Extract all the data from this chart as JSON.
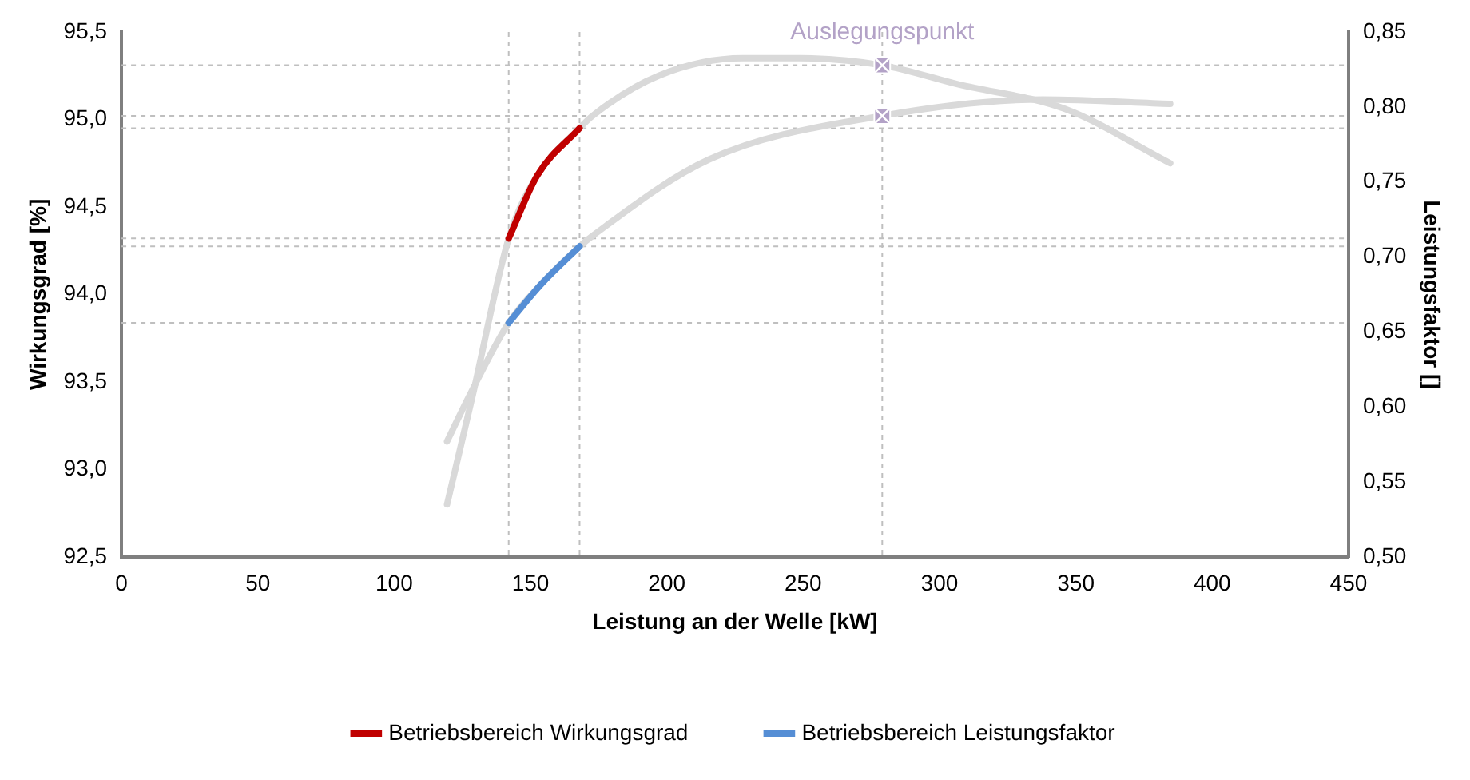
{
  "chart_data": {
    "type": "line",
    "xlabel": "Leistung an der Welle [kW]",
    "ylabel": "Wirkungsgrad [%]",
    "y2label": "Leistungsfaktor []",
    "xlim": [
      0,
      450
    ],
    "xticks": [
      0,
      50,
      100,
      150,
      200,
      250,
      300,
      350,
      400,
      450
    ],
    "ylim": [
      92.5,
      95.5
    ],
    "yticks": [
      {
        "value": 92.5,
        "label": "92,5"
      },
      {
        "value": 93,
        "label": "93,0"
      },
      {
        "value": 93.5,
        "label": "93,5"
      },
      {
        "value": 94,
        "label": "94,0"
      },
      {
        "value": 94.5,
        "label": "94,5"
      },
      {
        "value": 95,
        "label": "95,0"
      },
      {
        "value": 95.5,
        "label": "95,5"
      }
    ],
    "y2lim": [
      0.5,
      0.85
    ],
    "y2ticks": [
      {
        "value": 0.5,
        "label": "0,50"
      },
      {
        "value": 0.55,
        "label": "0,55"
      },
      {
        "value": 0.6,
        "label": "0,60"
      },
      {
        "value": 0.65,
        "label": "0,65"
      },
      {
        "value": 0.7,
        "label": "0,70"
      },
      {
        "value": 0.75,
        "label": "0,75"
      },
      {
        "value": 0.8,
        "label": "0,80"
      },
      {
        "value": 0.85,
        "label": "0,85"
      }
    ],
    "grid": false,
    "legend": "bottom",
    "marker": "none",
    "line_style": "solid",
    "series": [
      {
        "color": "#d9d9d9",
        "axis": "y",
        "x": [
          119.4,
          128.6,
          142,
          152.5,
          168,
          172.7,
          197,
          228,
          249,
          279,
          307,
          346,
          384.6
        ],
        "values": [
          92.8,
          93.41,
          94.32,
          94.68,
          94.95,
          95.02,
          95.25,
          95.35,
          95.35,
          95.31,
          95.2,
          95.06,
          94.75
        ]
      },
      {
        "color": "#d9d9d9",
        "axis": "y2",
        "x": [
          119.4,
          128,
          142,
          154,
          168,
          172.7,
          215.5,
          278.6,
          338,
          384.6
        ],
        "values": [
          0.577,
          0.609,
          0.656,
          0.682,
          0.707,
          0.714,
          0.765,
          0.794,
          0.805,
          0.802
        ]
      },
      {
        "name": "Betriebsbereich Wirkungsgrad",
        "color": "#c00000",
        "axis": "y",
        "x": [
          142,
          152.5,
          168
        ],
        "values": [
          94.32,
          94.68,
          94.95
        ]
      },
      {
        "name": "Betriebsbereich Leistungsfaktor",
        "color": "#558ed5",
        "axis": "y2",
        "x": [
          142,
          154,
          168
        ],
        "values": [
          0.656,
          0.682,
          0.707
        ]
      },
      {
        "type": "scatter",
        "marker": "square",
        "color": "#b3a2c7",
        "axis": "y",
        "x": [
          279
        ],
        "values": [
          95.31
        ]
      },
      {
        "type": "scatter",
        "marker": "square",
        "color": "#b3a2c7",
        "axis": "y2",
        "x": [
          279
        ],
        "values": [
          0.794
        ]
      }
    ],
    "ref_lines": [
      {
        "axis": "y",
        "value": 95.31,
        "color": "#bfbfbf",
        "line_style": "dashed"
      },
      {
        "axis": "y",
        "value": 94.95,
        "color": "#bfbfbf",
        "line_style": "dashed"
      },
      {
        "axis": "y",
        "value": 94.32,
        "color": "#bfbfbf",
        "line_style": "dashed"
      },
      {
        "axis": "y2",
        "value": 0.794,
        "color": "#bfbfbf",
        "line_style": "dashed"
      },
      {
        "axis": "y2",
        "value": 0.707,
        "color": "#bfbfbf",
        "line_style": "dashed"
      },
      {
        "axis": "y2",
        "value": 0.656,
        "color": "#bfbfbf",
        "line_style": "dashed"
      },
      {
        "axis": "x",
        "value": 142,
        "color": "#bfbfbf",
        "line_style": "dashed"
      },
      {
        "axis": "x",
        "value": 168,
        "color": "#bfbfbf",
        "line_style": "dashed"
      },
      {
        "axis": "x",
        "value": 279,
        "color": "#bfbfbf",
        "line_style": "dashed"
      }
    ],
    "annotations": [
      {
        "text": "Auslegungspunkt",
        "x": 279,
        "y": 95.5
      }
    ]
  }
}
